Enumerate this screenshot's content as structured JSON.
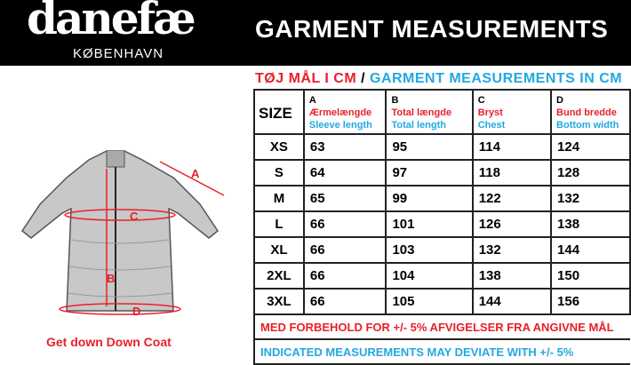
{
  "brand": {
    "logo": "danefæ",
    "subtitle": "KØBENHAVN"
  },
  "header": {
    "title": "GARMENT MEASUREMENTS"
  },
  "subtitle": {
    "danish": "TØJ MÅL I CM",
    "separator": " / ",
    "english": "GARMENT MEASUREMENTS IN CM"
  },
  "table": {
    "size_header": "SIZE",
    "columns": [
      {
        "code": "A",
        "danish": "Ærmelængde",
        "english": "Sleeve length"
      },
      {
        "code": "B",
        "danish": "Total længde",
        "english": "Total length"
      },
      {
        "code": "C",
        "danish": "Bryst",
        "english": "Chest"
      },
      {
        "code": "D",
        "danish": "Bund bredde",
        "english": "Bottom width"
      }
    ],
    "rows": [
      {
        "size": "XS",
        "values": [
          "63",
          "95",
          "114",
          "124"
        ]
      },
      {
        "size": "S",
        "values": [
          "64",
          "97",
          "118",
          "128"
        ]
      },
      {
        "size": "M",
        "values": [
          "65",
          "99",
          "122",
          "132"
        ]
      },
      {
        "size": "L",
        "values": [
          "66",
          "101",
          "126",
          "138"
        ]
      },
      {
        "size": "XL",
        "values": [
          "66",
          "103",
          "132",
          "144"
        ]
      },
      {
        "size": "2XL",
        "values": [
          "66",
          "104",
          "138",
          "150"
        ]
      },
      {
        "size": "3XL",
        "values": [
          "66",
          "105",
          "144",
          "156"
        ]
      }
    ]
  },
  "notes": {
    "danish": "MED FORBEHOLD FOR +/- 5% AFVIGELSER FRA ANGIVNE MÅL",
    "english": "INDICATED MEASUREMENTS MAY DEVIATE WITH +/- 5%"
  },
  "illustration": {
    "labels": [
      "A",
      "B",
      "C",
      "D"
    ],
    "caption": "Get down Down Coat"
  },
  "colors": {
    "red": "#e8202a",
    "blue": "#23a8e0",
    "header": "#000000"
  }
}
